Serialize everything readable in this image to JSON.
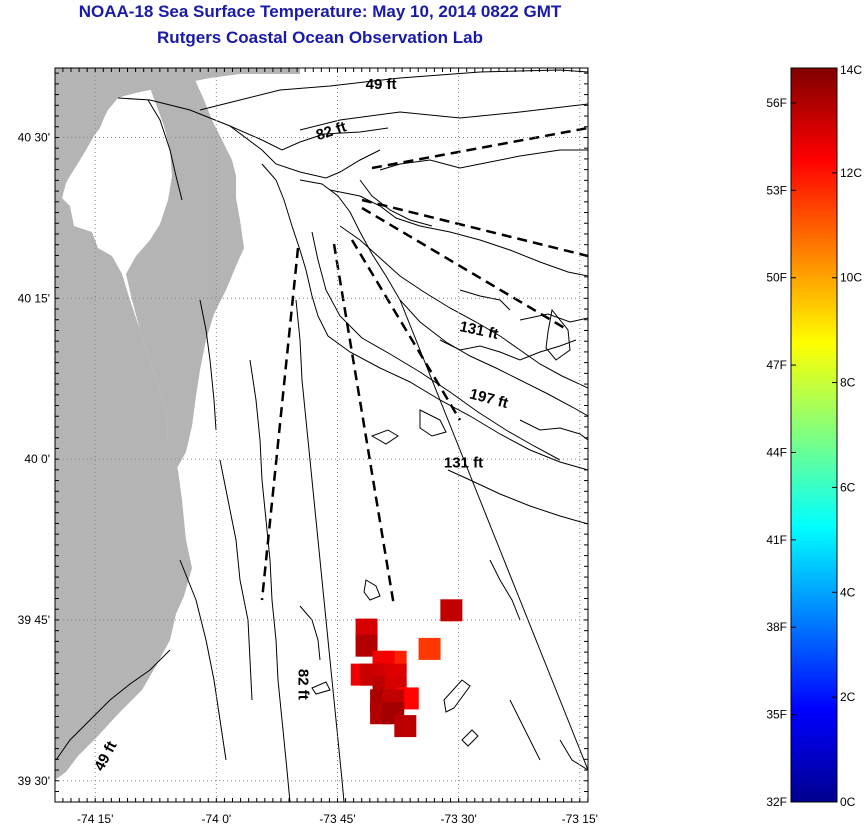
{
  "title": {
    "line1": "NOAA-18 Sea Surface Temperature:  May 10, 2014 0822 GMT",
    "line2": "Rutgers Coastal Ocean Observation Lab"
  },
  "colors": {
    "title": "#1a1aa8",
    "land": "#b4b4b4",
    "contour": "#000000",
    "grid": "#888888"
  },
  "map": {
    "lon_range": [
      -74.333,
      -73.233
    ],
    "lat_range": [
      39.467,
      40.608
    ],
    "x_ticks": [
      {
        "lon": -74.25,
        "label": "-74 15'"
      },
      {
        "lon": -74.0,
        "label": "-74 0'"
      },
      {
        "lon": -73.75,
        "label": "-73 45'"
      },
      {
        "lon": -73.5,
        "label": "-73 30'"
      },
      {
        "lon": -73.25,
        "label": "-73 15'"
      }
    ],
    "y_ticks": [
      {
        "lat": 40.5,
        "label": "40 30'"
      },
      {
        "lat": 40.25,
        "label": "40 15'"
      },
      {
        "lat": 40.0,
        "label": "40 0'"
      },
      {
        "lat": 39.75,
        "label": "39 45'"
      },
      {
        "lat": 39.5,
        "label": "39 30'"
      }
    ],
    "depth_labels": [
      {
        "text": "49 ft",
        "lon": -73.66,
        "lat": 40.575,
        "rotate": 0
      },
      {
        "text": "82 ft",
        "lon": -73.76,
        "lat": 40.503,
        "rotate": -18
      },
      {
        "text": "131 ft",
        "lon": -73.46,
        "lat": 40.193,
        "rotate": 12
      },
      {
        "text": "197 ft",
        "lon": -73.44,
        "lat": 40.087,
        "rotate": 15
      },
      {
        "text": "131 ft",
        "lon": -73.49,
        "lat": 39.987,
        "rotate": 0
      },
      {
        "text": "82 ft",
        "lon": -73.83,
        "lat": 39.65,
        "rotate": 90
      },
      {
        "text": "49 ft",
        "lon": -74.22,
        "lat": 39.535,
        "rotate": -62
      }
    ],
    "sst_pixels": [
      {
        "lon": -73.69,
        "lat": 39.735,
        "temp_c": 12.8
      },
      {
        "lon": -73.69,
        "lat": 39.71,
        "temp_c": 13.3
      },
      {
        "lon": -73.515,
        "lat": 39.765,
        "temp_c": 13.1
      },
      {
        "lon": -73.56,
        "lat": 39.705,
        "temp_c": 11.5
      },
      {
        "lon": -73.63,
        "lat": 39.685,
        "temp_c": 11.8
      },
      {
        "lon": -73.655,
        "lat": 39.685,
        "temp_c": 12.4
      },
      {
        "lon": -73.7,
        "lat": 39.665,
        "temp_c": 12.5
      },
      {
        "lon": -73.68,
        "lat": 39.665,
        "temp_c": 13.0
      },
      {
        "lon": -73.655,
        "lat": 39.665,
        "temp_c": 12.9
      },
      {
        "lon": -73.63,
        "lat": 39.665,
        "temp_c": 12.7
      },
      {
        "lon": -73.655,
        "lat": 39.645,
        "temp_c": 13.2
      },
      {
        "lon": -73.63,
        "lat": 39.645,
        "temp_c": 12.8
      },
      {
        "lon": -73.605,
        "lat": 39.628,
        "temp_c": 12.2
      },
      {
        "lon": -73.66,
        "lat": 39.625,
        "temp_c": 13.4
      },
      {
        "lon": -73.635,
        "lat": 39.625,
        "temp_c": 13.1
      },
      {
        "lon": -73.66,
        "lat": 39.605,
        "temp_c": 13.3
      },
      {
        "lon": -73.635,
        "lat": 39.605,
        "temp_c": 13.5
      },
      {
        "lon": -73.61,
        "lat": 39.585,
        "temp_c": 13.2
      }
    ]
  },
  "colorbar": {
    "range_c": [
      0,
      14
    ],
    "c_labels": [
      {
        "value": 14,
        "label": "14C"
      },
      {
        "value": 12,
        "label": "12C"
      },
      {
        "value": 10,
        "label": "10C"
      },
      {
        "value": 8,
        "label": "8C"
      },
      {
        "value": 6,
        "label": "6C"
      },
      {
        "value": 4,
        "label": "4C"
      },
      {
        "value": 2,
        "label": "2C"
      },
      {
        "value": 0,
        "label": "0C"
      }
    ],
    "f_labels": [
      {
        "value": 56,
        "label": "56F"
      },
      {
        "value": 53,
        "label": "53F"
      },
      {
        "value": 50,
        "label": "50F"
      },
      {
        "value": 47,
        "label": "47F"
      },
      {
        "value": 44,
        "label": "44F"
      },
      {
        "value": 41,
        "label": "41F"
      },
      {
        "value": 38,
        "label": "38F"
      },
      {
        "value": 35,
        "label": "35F"
      },
      {
        "value": 32,
        "label": "32F"
      }
    ]
  }
}
